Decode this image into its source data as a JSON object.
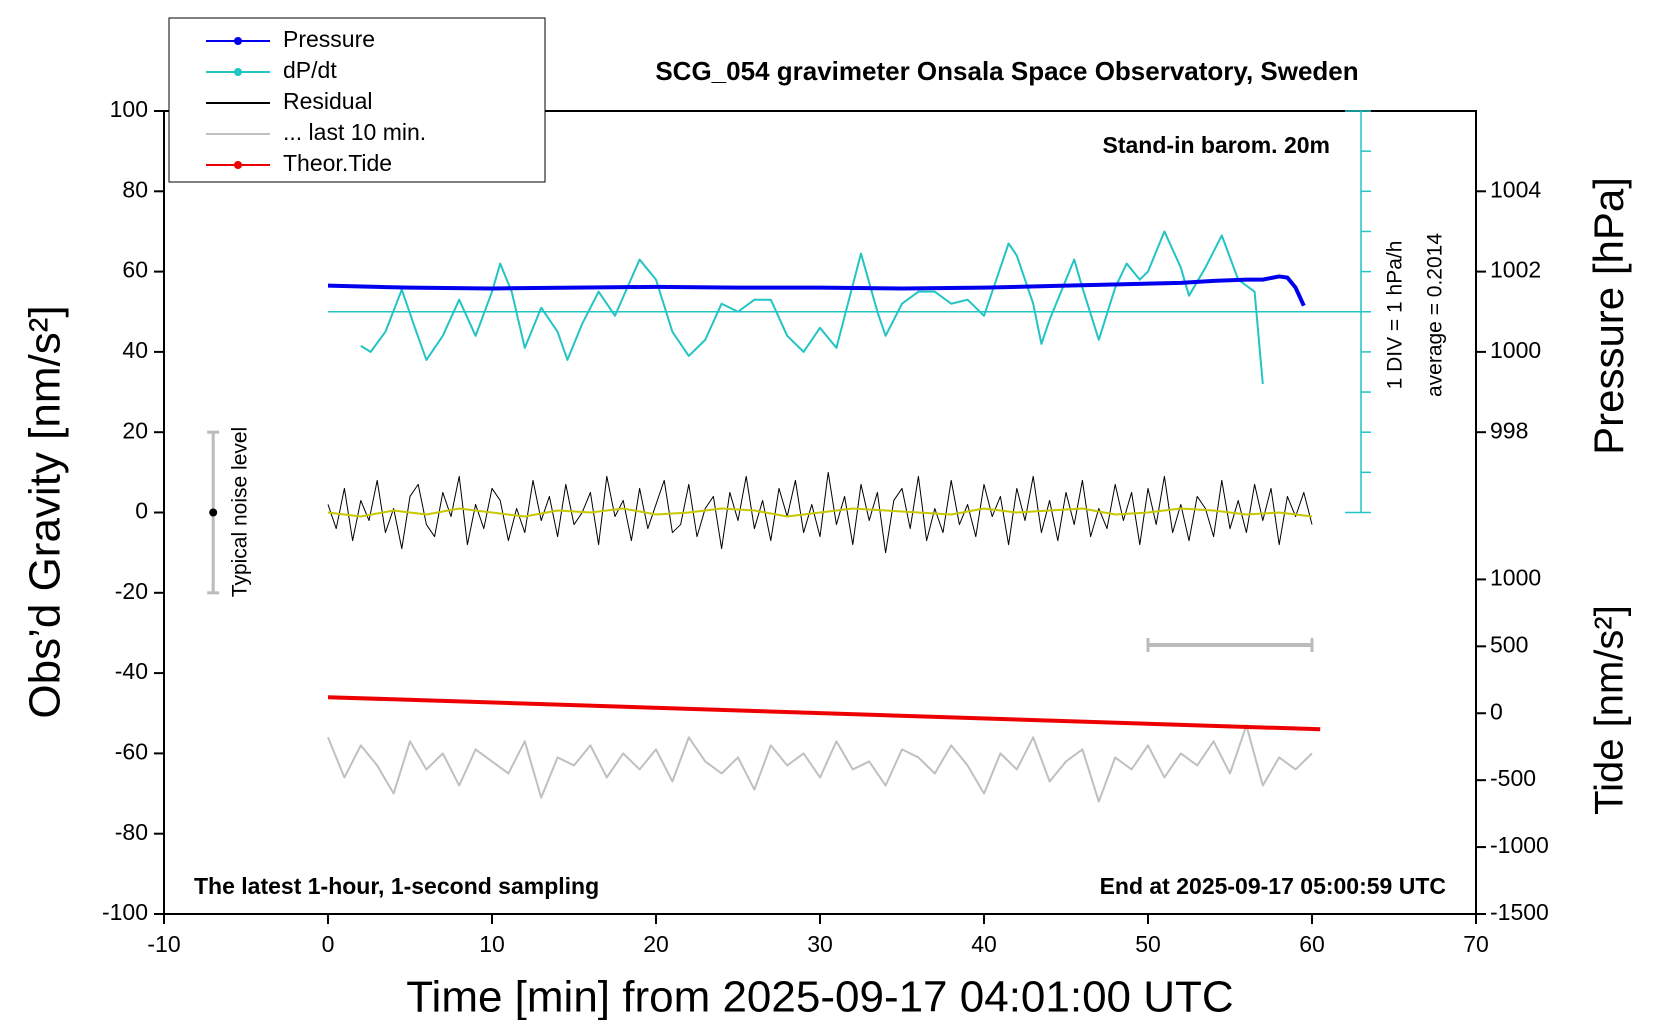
{
  "chart_data": {
    "type": "line",
    "title": "SCG_054 gravimeter Onsala Space Observatory, Sweden",
    "xlabel": "Time [min] from 2025-09-17 04:01:00 UTC",
    "ylabel": "Obs’d Gravity [nm/s²]",
    "y2label": "Pressure [hPa]",
    "y3label": "Tide [nm/s²]",
    "annotations": [
      "Stand-in barom. 20m",
      "1 DIV = 1 hPa/h",
      "average = 0.2014",
      "The latest 1-hour, 1-second sampling",
      "End at 2025-09-17 05:00:59 UTC"
    ],
    "noise_level": {
      "label": "Typical noise level",
      "x": -7,
      "value": 0,
      "error": 20
    },
    "last10_range": [
      50,
      60
    ],
    "xlim": [
      -10,
      70
    ],
    "xticks": [
      -10,
      0,
      10,
      20,
      30,
      40,
      50,
      60,
      70
    ],
    "ylim": [
      -100,
      100
    ],
    "yticks": [
      -100,
      -80,
      -60,
      -40,
      -20,
      0,
      20,
      40,
      60,
      80,
      100
    ],
    "y2lim": [
      986,
      1006
    ],
    "y2ticks": [
      998,
      1000,
      1002,
      1004
    ],
    "y3lim": [
      -1500,
      4500
    ],
    "y3ticks": [
      -1500,
      -1000,
      -500,
      0,
      500,
      1000
    ],
    "y4lim": [
      -15,
      5
    ],
    "y4ticks": [
      -5,
      -4,
      -3,
      -2,
      -1,
      0,
      1,
      2,
      3,
      4,
      5
    ],
    "series": [
      {
        "name": "Pressure",
        "color": "#0000ee",
        "axis": "y2",
        "marker": true,
        "x": [
          0,
          5,
          10,
          15,
          20,
          25,
          30,
          35,
          40,
          45,
          50,
          52,
          54,
          56,
          57,
          58,
          58.5,
          59,
          59.5
        ],
        "values": [
          1001.65,
          1001.6,
          1001.58,
          1001.6,
          1001.62,
          1001.6,
          1001.6,
          1001.58,
          1001.6,
          1001.65,
          1001.7,
          1001.72,
          1001.77,
          1001.8,
          1001.8,
          1001.88,
          1001.85,
          1001.6,
          1001.15
        ]
      },
      {
        "name": "dP/dt",
        "color": "#22c4c4",
        "axis": "y4",
        "marker": true,
        "x": [
          2,
          2.6,
          3.5,
          4.5,
          5.3,
          6,
          7,
          8,
          9,
          10,
          10.5,
          11.2,
          12,
          13,
          14,
          14.6,
          15.5,
          16.5,
          17.5,
          19,
          20,
          21,
          22,
          23,
          24,
          25,
          26,
          27,
          28,
          29,
          30,
          31,
          32.5,
          33.5,
          34,
          35,
          36,
          37,
          38,
          39,
          40,
          41.5,
          42,
          43,
          43.5,
          44,
          45.5,
          46,
          47,
          48,
          48.7,
          49.5,
          50,
          51,
          52,
          52.5,
          53.5,
          54.5,
          55.5,
          56.5,
          57
        ],
        "values": [
          -0.85,
          -1,
          -0.5,
          0.55,
          -0.4,
          -1.2,
          -0.6,
          0.3,
          -0.6,
          0.5,
          1.2,
          0.5,
          -0.9,
          0.1,
          -0.5,
          -1.2,
          -0.3,
          0.5,
          -0.1,
          1.3,
          0.8,
          -0.5,
          -1.1,
          -0.7,
          0.2,
          0,
          0.3,
          0.3,
          -0.6,
          -1,
          -0.4,
          -0.9,
          1.45,
          0,
          -0.6,
          0.2,
          0.5,
          0.5,
          0.2,
          0.3,
          -0.1,
          1.7,
          1.4,
          0.2,
          -0.8,
          -0.2,
          1.3,
          0.6,
          -0.7,
          0.6,
          1.2,
          0.8,
          1,
          2,
          1.1,
          0.4,
          1.1,
          1.9,
          0.8,
          0.5,
          -1.8
        ]
      },
      {
        "name": "Residual",
        "color": "#000000",
        "axis": "y",
        "x": [
          0,
          0.5,
          1,
          1.5,
          2,
          2.5,
          3,
          3.5,
          4,
          4.5,
          5,
          5.5,
          6,
          6.5,
          7,
          7.5,
          8,
          8.5,
          9,
          9.5,
          10,
          10.5,
          11,
          11.5,
          12,
          12.5,
          13,
          13.5,
          14,
          14.5,
          15,
          15.5,
          16,
          16.5,
          17,
          17.5,
          18,
          18.5,
          19,
          19.5,
          20,
          20.5,
          21,
          21.5,
          22,
          22.5,
          23,
          23.5,
          24,
          24.5,
          25,
          25.5,
          26,
          26.5,
          27,
          27.5,
          28,
          28.5,
          29,
          29.5,
          30,
          30.5,
          31,
          31.5,
          32,
          32.5,
          33,
          33.5,
          34,
          34.5,
          35,
          35.5,
          36,
          36.5,
          37,
          37.5,
          38,
          38.5,
          39,
          39.5,
          40,
          40.5,
          41,
          41.5,
          42,
          42.5,
          43,
          43.5,
          44,
          44.5,
          45,
          45.5,
          46,
          46.5,
          47,
          47.5,
          48,
          48.5,
          49,
          49.5,
          50,
          50.5,
          51,
          51.5,
          52,
          52.5,
          53,
          53.5,
          54,
          54.5,
          55,
          55.5,
          56,
          56.5,
          57,
          57.5,
          58,
          58.5,
          59,
          59.5,
          60
        ],
        "values": [
          2,
          -4,
          6,
          -7,
          3,
          -2,
          8,
          -5,
          1,
          -9,
          4,
          7,
          -3,
          -6,
          5,
          -1,
          9,
          -8,
          2,
          -4,
          6,
          3,
          -7,
          1,
          -5,
          8,
          -2,
          4,
          -6,
          7,
          -3,
          0,
          5,
          -8,
          9,
          -1,
          3,
          -7,
          6,
          -4,
          2,
          8,
          -5,
          -3,
          7,
          -6,
          1,
          4,
          -9,
          5,
          -2,
          9,
          -4,
          3,
          -7,
          6,
          -1,
          8,
          -5,
          2,
          -6,
          10,
          -3,
          4,
          -8,
          7,
          -2,
          5,
          -10,
          3,
          6,
          -4,
          9,
          -7,
          1,
          -5,
          8,
          -3,
          2,
          -6,
          7,
          -1,
          4,
          -8,
          6,
          -2,
          9,
          -5,
          3,
          -7,
          5,
          -3,
          8,
          -6,
          1,
          -4,
          7,
          -2,
          5,
          -8,
          6,
          -3,
          9,
          -5,
          2,
          -7,
          4,
          1,
          -6,
          8,
          -4,
          3,
          -5,
          7,
          -2,
          6,
          -8,
          4,
          -1,
          5,
          -3
        ]
      },
      {
        "name": "... last 10 min.",
        "color": "#c0c0c0",
        "axis": "y",
        "x": [
          0,
          1,
          2,
          3,
          4,
          5,
          6,
          7,
          8,
          9,
          10,
          11,
          12,
          13,
          14,
          15,
          16,
          17,
          18,
          19,
          20,
          21,
          22,
          23,
          24,
          25,
          26,
          27,
          28,
          29,
          30,
          31,
          32,
          33,
          34,
          35,
          36,
          37,
          38,
          39,
          40,
          41,
          42,
          43,
          44,
          45,
          46,
          47,
          48,
          49,
          50,
          51,
          52,
          53,
          54,
          55,
          56,
          57,
          58,
          59,
          60
        ],
        "values": [
          -56,
          -66,
          -58,
          -63,
          -70,
          -57,
          -64,
          -60,
          -68,
          -59,
          -62,
          -65,
          -57,
          -71,
          -61,
          -63,
          -58,
          -66,
          -60,
          -64,
          -59,
          -67,
          -56,
          -62,
          -65,
          -61,
          -69,
          -58,
          -63,
          -60,
          -66,
          -57,
          -64,
          -62,
          -68,
          -59,
          -61,
          -65,
          -58,
          -63,
          -70,
          -60,
          -64,
          -56,
          -67,
          -62,
          -59,
          -72,
          -61,
          -64,
          -58,
          -66,
          -60,
          -63,
          -57,
          -65,
          -53,
          -68,
          -61,
          -64,
          -60
        ]
      },
      {
        "name": "Theor.Tide",
        "color": "#ee0000",
        "axis": "y3",
        "marker": true,
        "x": [
          0,
          60.5
        ],
        "values": [
          120,
          -120
        ]
      },
      {
        "color": "#c8c800",
        "axis": "y",
        "x": [
          0,
          2,
          4,
          6,
          8,
          10,
          12,
          14,
          16,
          18,
          20,
          22,
          24,
          26,
          28,
          30,
          32,
          34,
          36,
          38,
          40,
          42,
          44,
          46,
          48,
          50,
          52,
          54,
          56,
          58,
          60
        ],
        "values": [
          0,
          -1,
          0.5,
          -0.5,
          1,
          0,
          -1,
          0.5,
          0,
          1,
          -0.5,
          0,
          1,
          0.5,
          -1,
          0,
          1,
          0.5,
          0,
          -0.5,
          1,
          0,
          0.5,
          1,
          -0.5,
          0,
          1,
          0.5,
          -0.5,
          0,
          -1
        ]
      }
    ]
  }
}
